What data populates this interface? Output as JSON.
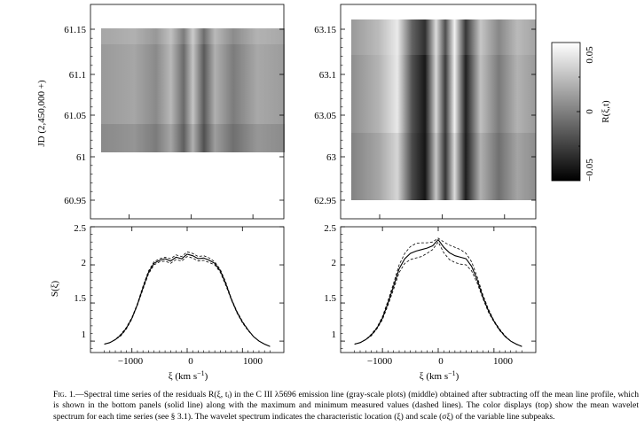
{
  "figure": {
    "top_left": {
      "ylabel": "JD (2,450,000 +)",
      "yticks": [
        "60.95",
        "61",
        "61.05",
        "61.1",
        "61.15"
      ],
      "time_range": [
        60.95,
        61.17
      ],
      "data_time_range": [
        61.008,
        61.155
      ]
    },
    "top_right": {
      "yticks": [
        "62.95",
        "63",
        "63.05",
        "63.1",
        "63.15"
      ],
      "time_range": [
        62.94,
        63.17
      ],
      "data_time_range": [
        62.955,
        63.145
      ]
    },
    "colorbar": {
      "ticks": [
        "0.05",
        "0",
        "−0.05"
      ],
      "label": "R(ξ,t)"
    },
    "xlabel_parts": [
      "ξ  (km s",
      "−1",
      ")"
    ],
    "bottom_ylabel": "S(ξ)"
  },
  "chart_data": [
    {
      "type": "line",
      "panel": "bottom-left",
      "ylabel": "S(ξ)",
      "xlabel": "ξ (km s⁻¹)",
      "xlim": [
        -1750,
        1750
      ],
      "ylim": [
        0.85,
        2.5
      ],
      "xticks": [
        -1000,
        0,
        1000
      ],
      "yticks": [
        1,
        1.5,
        2,
        2.5
      ],
      "x": [
        -1500,
        -1400,
        -1300,
        -1200,
        -1100,
        -1000,
        -900,
        -800,
        -700,
        -600,
        -500,
        -400,
        -300,
        -200,
        -100,
        0,
        100,
        200,
        300,
        400,
        500,
        600,
        700,
        800,
        900,
        1000,
        1100,
        1200,
        1300,
        1400,
        1500
      ],
      "series": [
        {
          "style": "solid",
          "values": [
            0.96,
            0.98,
            1.02,
            1.08,
            1.17,
            1.3,
            1.48,
            1.7,
            1.9,
            2.02,
            2.06,
            2.08,
            2.05,
            2.1,
            2.08,
            2.14,
            2.12,
            2.08,
            2.09,
            2.06,
            2.02,
            1.92,
            1.75,
            1.55,
            1.38,
            1.25,
            1.15,
            1.06,
            1.0,
            0.96,
            0.93
          ]
        },
        {
          "style": "dashed",
          "values": [
            0.96,
            0.98,
            1.02,
            1.09,
            1.18,
            1.31,
            1.49,
            1.72,
            1.92,
            2.04,
            2.08,
            2.1,
            2.08,
            2.13,
            2.11,
            2.17,
            2.15,
            2.11,
            2.12,
            2.09,
            2.04,
            1.94,
            1.77,
            1.56,
            1.39,
            1.26,
            1.15,
            1.06,
            1.0,
            0.96,
            0.93
          ]
        },
        {
          "style": "dashed",
          "values": [
            0.96,
            0.98,
            1.02,
            1.07,
            1.16,
            1.29,
            1.47,
            1.68,
            1.88,
            2.0,
            2.04,
            2.05,
            2.02,
            2.07,
            2.05,
            2.11,
            2.09,
            2.05,
            2.06,
            2.03,
            2.0,
            1.9,
            1.73,
            1.54,
            1.37,
            1.24,
            1.14,
            1.06,
            1.0,
            0.96,
            0.93
          ]
        }
      ]
    },
    {
      "type": "line",
      "panel": "bottom-right",
      "xlabel": "ξ (km s⁻¹)",
      "xlim": [
        -1750,
        1750
      ],
      "ylim": [
        0.85,
        2.5
      ],
      "xticks": [
        -1000,
        0,
        1000
      ],
      "yticks": [
        1,
        1.5,
        2,
        2.5
      ],
      "x": [
        -1500,
        -1400,
        -1300,
        -1200,
        -1100,
        -1000,
        -900,
        -800,
        -700,
        -600,
        -500,
        -400,
        -300,
        -200,
        -100,
        0,
        100,
        200,
        300,
        400,
        500,
        600,
        700,
        800,
        900,
        1000,
        1100,
        1200,
        1300,
        1400,
        1500
      ],
      "series": [
        {
          "style": "solid",
          "values": [
            0.96,
            0.98,
            1.02,
            1.08,
            1.17,
            1.3,
            1.5,
            1.72,
            1.95,
            2.08,
            2.15,
            2.18,
            2.2,
            2.22,
            2.25,
            2.33,
            2.23,
            2.16,
            2.12,
            2.1,
            2.08,
            1.98,
            1.8,
            1.58,
            1.4,
            1.26,
            1.15,
            1.06,
            1.0,
            0.96,
            0.93
          ]
        },
        {
          "style": "dashed",
          "values": [
            0.96,
            0.98,
            1.02,
            1.09,
            1.18,
            1.32,
            1.53,
            1.76,
            2.0,
            2.15,
            2.24,
            2.28,
            2.29,
            2.29,
            2.3,
            2.35,
            2.3,
            2.26,
            2.23,
            2.2,
            2.15,
            2.04,
            1.84,
            1.61,
            1.42,
            1.27,
            1.16,
            1.07,
            1.0,
            0.96,
            0.93
          ]
        },
        {
          "style": "dashed",
          "values": [
            0.96,
            0.98,
            1.02,
            1.07,
            1.16,
            1.28,
            1.47,
            1.68,
            1.9,
            2.02,
            2.07,
            2.09,
            2.11,
            2.15,
            2.2,
            2.3,
            2.16,
            2.07,
            2.03,
            2.01,
            2.0,
            1.92,
            1.76,
            1.56,
            1.38,
            1.25,
            1.14,
            1.06,
            1.0,
            0.96,
            0.93
          ]
        }
      ]
    }
  ],
  "caption": {
    "label": "Fig. 1.",
    "text": "—Spectral time series of the residuals R(ξ, tᵢ) in the C III λ5696 emission line (gray-scale plots) (middle) obtained after subtracting off the mean line profile, which is shown in the bottom panels (solid line) along with the maximum and minimum measured values (dashed lines). The color displays (top) show the mean wavelet spectrum for each time series (see § 3.1). The wavelet spectrum indicates the characteristic location (ξ) and scale (σξ) of the variable line subpeaks."
  }
}
